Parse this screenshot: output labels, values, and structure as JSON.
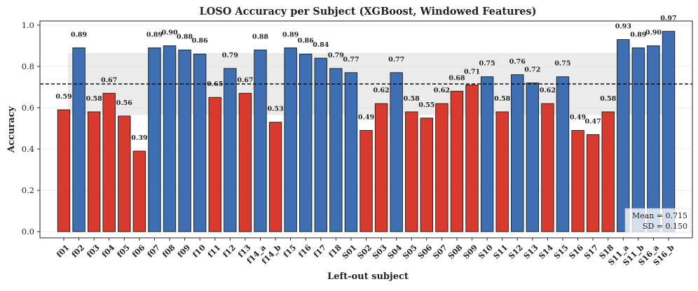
{
  "chart_data": {
    "type": "bar",
    "title": "LOSO Accuracy per Subject (XGBoost, Windowed Features)",
    "xlabel": "Left-out subject",
    "ylabel": "Accuracy",
    "ylim": [
      -0.03,
      1.02
    ],
    "yticks": [
      "0.0",
      "0.2",
      "0.4",
      "0.6",
      "0.8",
      "1.0"
    ],
    "grid": true,
    "categories": [
      "f01",
      "f02",
      "f03",
      "f04",
      "f05",
      "f06",
      "f07",
      "f08",
      "f09",
      "f10",
      "f11",
      "f12",
      "f13",
      "f14_a",
      "f14_b",
      "f15",
      "f16",
      "f17",
      "f18",
      "S01",
      "S02",
      "S03",
      "S04",
      "S05",
      "S06",
      "S07",
      "S08",
      "S09",
      "S10",
      "S11",
      "S12",
      "S13",
      "S14",
      "S15",
      "S16",
      "S17",
      "S18",
      "S11_a",
      "S11_b",
      "S16_a",
      "S16_b"
    ],
    "values": [
      0.59,
      0.89,
      0.58,
      0.67,
      0.56,
      0.39,
      0.89,
      0.9,
      0.88,
      0.86,
      0.65,
      0.79,
      0.67,
      0.88,
      0.53,
      0.89,
      0.86,
      0.84,
      0.79,
      0.77,
      0.49,
      0.62,
      0.77,
      0.58,
      0.55,
      0.62,
      0.68,
      0.71,
      0.75,
      0.58,
      0.76,
      0.72,
      0.62,
      0.75,
      0.49,
      0.47,
      0.58,
      0.93,
      0.89,
      0.9,
      0.97
    ],
    "value_labels": [
      "0.59",
      "0.89",
      "0.58",
      "0.67",
      "0.56",
      "0.39",
      "0.89",
      "0.90",
      "0.88",
      "0.86",
      "0.65",
      "0.79",
      "0.67",
      "0.88",
      "0.53",
      "0.89",
      "0.86",
      "0.84",
      "0.79",
      "0.77",
      "0.49",
      "0.62",
      "0.77",
      "0.58",
      "0.55",
      "0.62",
      "0.68",
      "0.71",
      "0.75",
      "0.58",
      "0.76",
      "0.72",
      "0.62",
      "0.75",
      "0.49",
      "0.47",
      "0.58",
      "0.93",
      "0.89",
      "0.90",
      "0.97"
    ],
    "mean": 0.715,
    "sd": 0.15,
    "mean_line": "dashed",
    "sd_band": [
      0.565,
      0.865
    ],
    "stats_box": {
      "mean_text": "Mean = 0.715",
      "sd_text": "SD = 0.150",
      "placement": "bottom-right"
    },
    "colors": {
      "above_mean": "#3f6fb3",
      "below_mean": "#d93a2e",
      "band": "#e4e4e4",
      "mean_line": "#111111"
    }
  }
}
